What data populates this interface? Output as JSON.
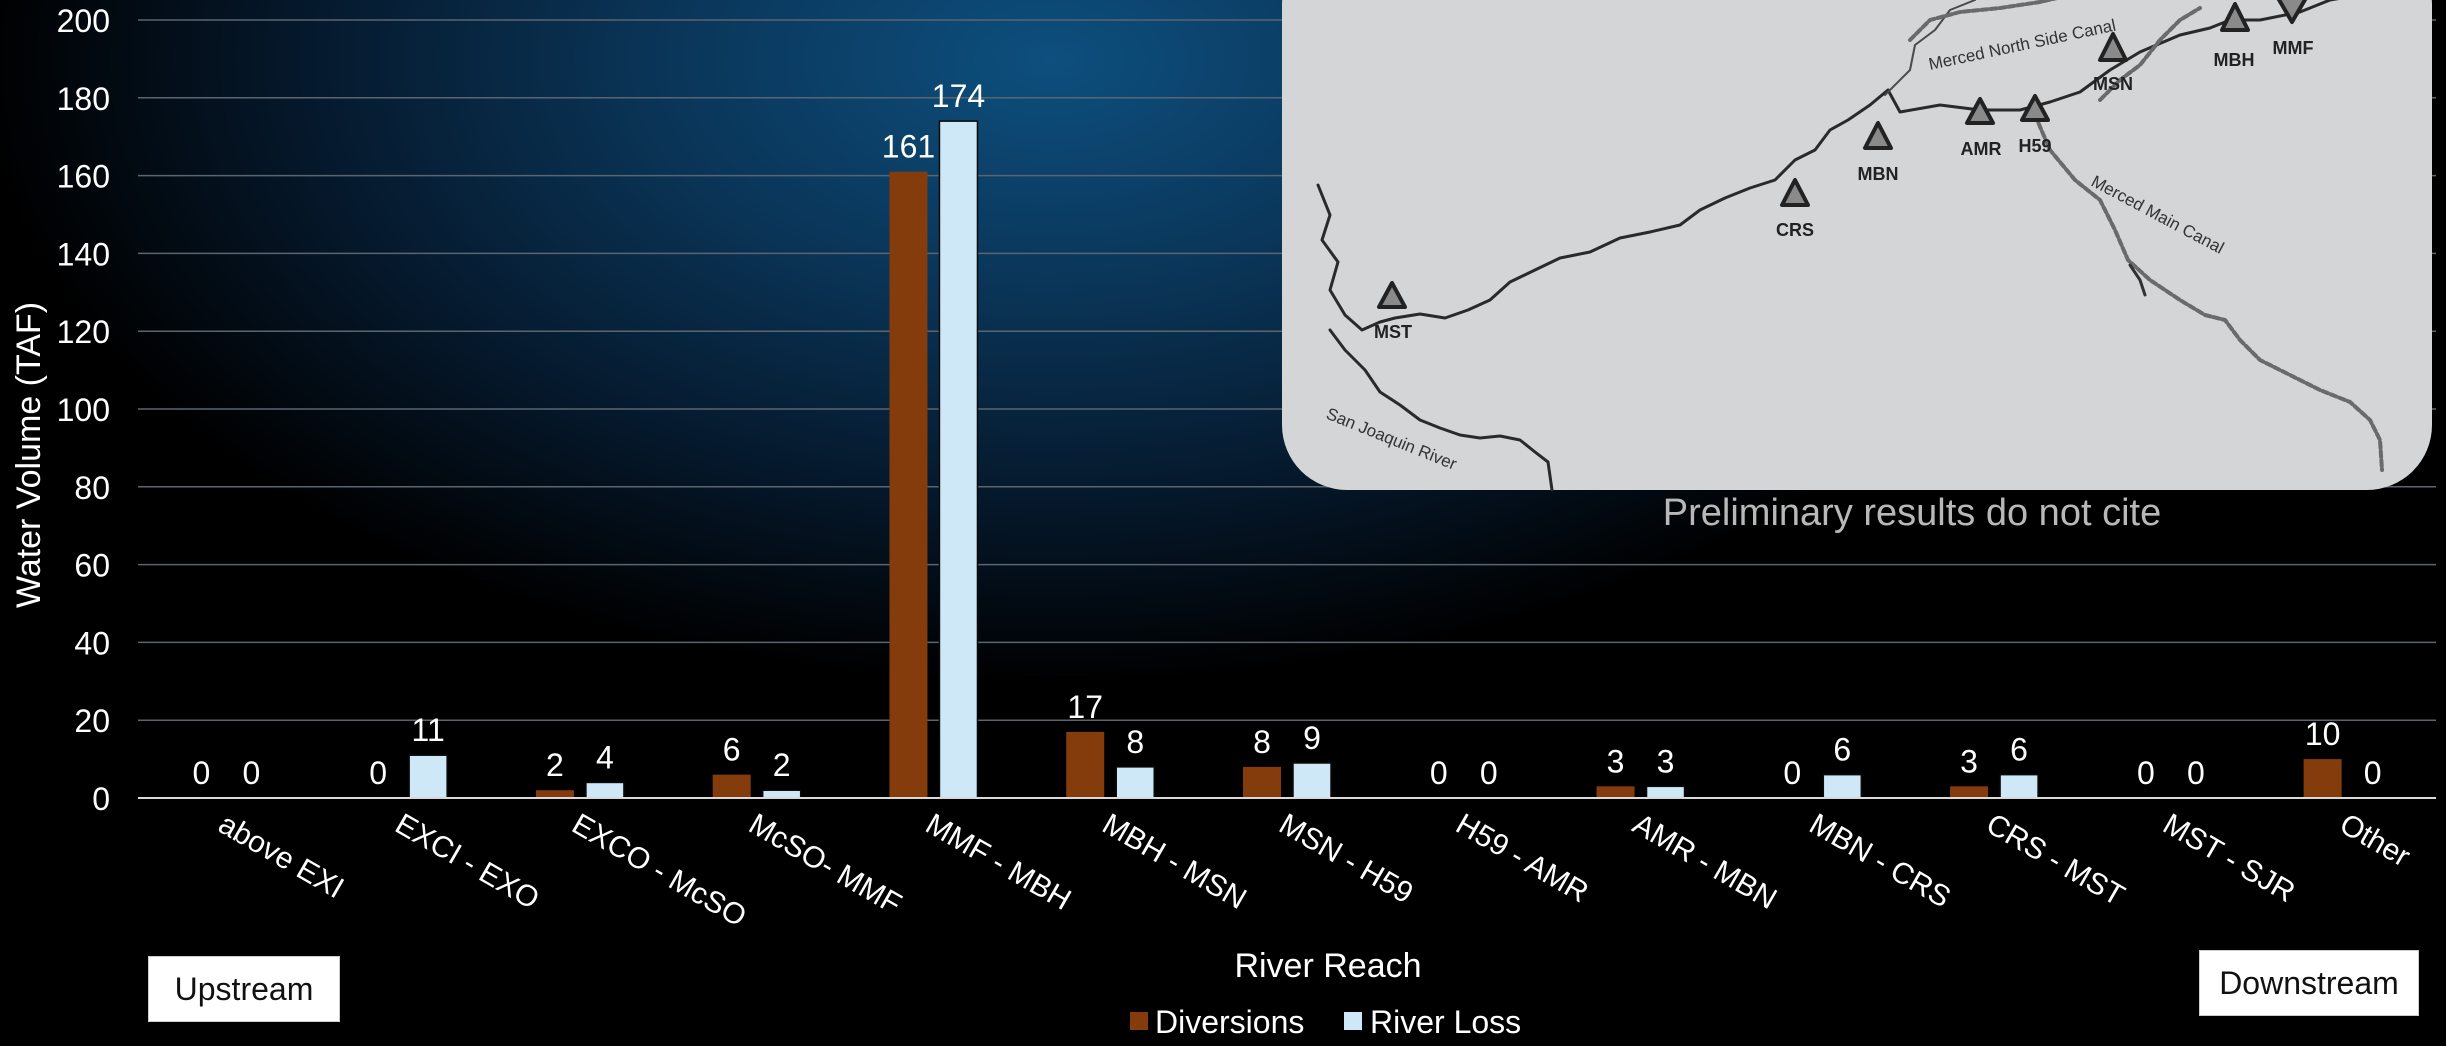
{
  "chart_data": {
    "type": "bar",
    "title": "",
    "xlabel": "River Reach",
    "ylabel": "Water Volume (TAF)",
    "ylim": [
      0,
      200
    ],
    "yticks": [
      0,
      20,
      40,
      60,
      80,
      100,
      120,
      140,
      160,
      180,
      200
    ],
    "grid": true,
    "legend_position": "bottom-center",
    "categories": [
      "above EXI",
      "EXCI - EXO",
      "EXCO - McSO",
      "McSO- MMF",
      "MMF - MBH",
      "MBH - MSN",
      "MSN - H59",
      "H59 - AMR",
      "AMR - MBN",
      "MBN - CRS",
      "CRS - MST",
      "MST - SJR",
      "Other"
    ],
    "series": [
      {
        "name": "Diversions",
        "color": "#843c0c",
        "values": [
          0,
          0,
          2,
          6,
          161,
          17,
          8,
          0,
          3,
          0,
          3,
          0,
          10
        ]
      },
      {
        "name": "River Loss",
        "color": "#cfe8f8",
        "values": [
          0,
          11,
          4,
          2,
          174,
          8,
          9,
          0,
          3,
          6,
          6,
          0,
          0
        ]
      }
    ]
  },
  "annotations": {
    "upstream": "Upstream",
    "downstream": "Downstream",
    "preliminary": "Preliminary results do not cite"
  },
  "map_inset": {
    "stations": [
      "MMF",
      "MBH",
      "MSN",
      "MBN",
      "AMR",
      "H59",
      "CRS",
      "MST"
    ],
    "waterways": [
      "Merced North Side Canal",
      "Merced Main Canal",
      "San Joaquin River"
    ]
  }
}
